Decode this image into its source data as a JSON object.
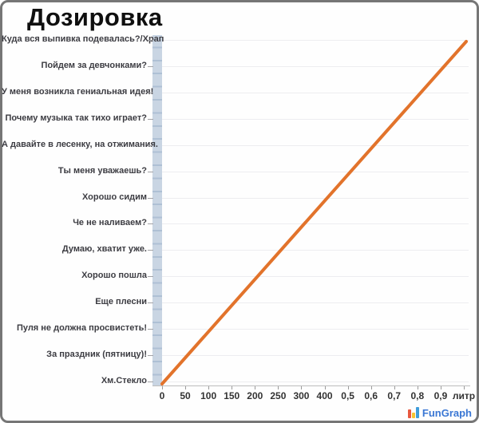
{
  "window": {
    "border_color": "#767676",
    "background": "#ffffff"
  },
  "header": {
    "title": "Дозировка"
  },
  "watermark": {
    "name": "FunGraph",
    "text_fun": "Fun",
    "text_graph": "Graph",
    "icon": "bar-chart-icon",
    "colors": {
      "text": "#3a77d4",
      "bar1": "#e8583f",
      "bar2": "#f5c432",
      "bar3": "#3f9ddb"
    }
  },
  "chart_data": {
    "type": "line",
    "title": "Дозировка",
    "x_tick_labels": [
      "0",
      "50",
      "100",
      "150",
      "200",
      "250",
      "300",
      "400",
      "0,5",
      "0,6",
      "0,7",
      "0,8",
      "0,9",
      "литр"
    ],
    "x_unit_label": "литр",
    "y_tick_labels_top_to_bottom": [
      "Куда вся выпивка подевалась?/Храп",
      "Пойдем за девчонками?",
      "У меня возникла гениальная идея!",
      "Почему музыка так тихо играет?",
      "А давайте в лесенку, на отжимания.",
      "Ты меня уважаешь?",
      "Хорошо сидим",
      "Че не наливаем?",
      "Думаю, хватит уже.",
      "Хорошо пошла",
      "Еще плесни",
      "Пуля не должна просвистеть!",
      "За праздник (пятницу)!",
      "Хм.Стекло"
    ],
    "series": [
      {
        "name": "dosage-line",
        "color": "#e2732b",
        "points": [
          {
            "x": "0",
            "y": "Хм.Стекло"
          },
          {
            "x": "литр",
            "y": "Куда вся выпивка подевалась?/Храп"
          }
        ],
        "shape": "straight diagonal line rising from bottom-left to top-right"
      }
    ],
    "grid": "horizontal-light",
    "legend": "none",
    "axis_band_color": "#c9d5e3",
    "gridline_color": "#ededf0"
  }
}
